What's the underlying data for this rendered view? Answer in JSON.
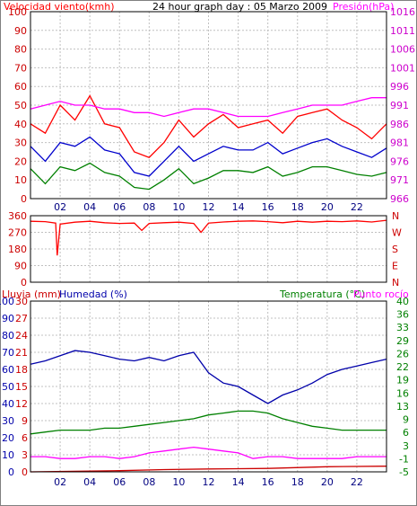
{
  "header": {
    "wind_label": "Velocidad viento(kmh)",
    "title": "24 hour graph day : 05 Marzo 2009",
    "pressure_label": "Presión(hPa)"
  },
  "lower_header": {
    "rain_label": "Lluvia (mm)",
    "humidity_label": "Humedad (%)",
    "temp_label": "Temperatura (°C)",
    "dew_label": "Punto rocío"
  },
  "colors": {
    "background": "#ffffff",
    "grid": "#c0c0c0",
    "frame": "#000000",
    "wind": "#ff0000",
    "wind_avg": "#0000cc",
    "wind_low": "#008000",
    "pressure": "#ff00ff",
    "direction": "#ff0000",
    "humidity": "#0000aa",
    "temperature": "#008000",
    "dew_point": "#ff00ff",
    "rain": "#cc0000",
    "left_axis_text": "#cc0000",
    "right_axis_text": "#cc00cc",
    "temp_axis_text": "#008000"
  },
  "chart_data": [
    {
      "type": "line",
      "title": "24 hour graph day : 05 Marzo 2009",
      "x_ticks": [
        "02",
        "04",
        "06",
        "08",
        "10",
        "12",
        "14",
        "16",
        "18",
        "20",
        "22"
      ],
      "x_tick_hours": [
        2,
        4,
        6,
        8,
        10,
        12,
        14,
        16,
        18,
        20,
        22
      ],
      "xlim": [
        0,
        24
      ],
      "y_left_label": "Velocidad viento(kmh)",
      "y_left_ticks": [
        0,
        10,
        20,
        30,
        40,
        50,
        60,
        70,
        80,
        90,
        100
      ],
      "ylim_left": [
        0,
        100
      ],
      "y_right_label": "Presión(hPa)",
      "y_right_ticks": [
        966,
        971,
        976,
        981,
        986,
        991,
        996,
        1001,
        1006,
        1011,
        1016
      ],
      "ylim_right": [
        966,
        1016
      ],
      "grid": true,
      "series": [
        {
          "axis": "left",
          "x": [
            0,
            1,
            2,
            3,
            4,
            5,
            6,
            7,
            8,
            9,
            10,
            11,
            12,
            13,
            14,
            15,
            16,
            17,
            18,
            19,
            20,
            21,
            22,
            23,
            24
          ],
          "values": [
            40,
            35,
            50,
            42,
            55,
            40,
            38,
            25,
            22,
            30,
            42,
            33,
            40,
            45,
            38,
            40,
            42,
            35,
            44,
            46,
            48,
            42,
            38,
            32,
            40
          ]
        },
        {
          "axis": "left",
          "x": [
            0,
            1,
            2,
            3,
            4,
            5,
            6,
            7,
            8,
            9,
            10,
            11,
            12,
            13,
            14,
            15,
            16,
            17,
            18,
            19,
            20,
            21,
            22,
            23,
            24
          ],
          "values": [
            28,
            20,
            30,
            28,
            33,
            26,
            24,
            14,
            12,
            20,
            28,
            20,
            24,
            28,
            26,
            26,
            30,
            24,
            27,
            30,
            32,
            28,
            25,
            22,
            27
          ]
        },
        {
          "axis": "left",
          "x": [
            0,
            1,
            2,
            3,
            4,
            5,
            6,
            7,
            8,
            9,
            10,
            11,
            12,
            13,
            14,
            15,
            16,
            17,
            18,
            19,
            20,
            21,
            22,
            23,
            24
          ],
          "values": [
            16,
            8,
            17,
            15,
            19,
            14,
            12,
            6,
            5,
            10,
            16,
            8,
            11,
            15,
            15,
            14,
            17,
            12,
            14,
            17,
            17,
            15,
            13,
            12,
            14
          ]
        },
        {
          "axis": "right",
          "x": [
            0,
            1,
            2,
            3,
            4,
            5,
            6,
            7,
            8,
            9,
            10,
            11,
            12,
            13,
            14,
            15,
            16,
            17,
            18,
            19,
            20,
            21,
            22,
            23,
            24
          ],
          "values": [
            990,
            991,
            992,
            991,
            991,
            990,
            990,
            989,
            989,
            988,
            989,
            990,
            990,
            989,
            988,
            988,
            988,
            989,
            990,
            991,
            991,
            991,
            992,
            993,
            993
          ]
        }
      ]
    },
    {
      "type": "line",
      "x_ticks": [
        "02",
        "04",
        "06",
        "08",
        "10",
        "12",
        "14",
        "16",
        "18",
        "20",
        "22"
      ],
      "xlim": [
        0,
        24
      ],
      "y_left_ticks": [
        0,
        90,
        180,
        270,
        360
      ],
      "ylim_left": [
        0,
        360
      ],
      "y_right_ticks": [
        "N",
        "E",
        "S",
        "W",
        "N"
      ],
      "grid": true,
      "series": [
        {
          "x": [
            0,
            1,
            1.7,
            1.8,
            2,
            3,
            4,
            5,
            6,
            7,
            7.5,
            8,
            9,
            10,
            11,
            11.5,
            12,
            13,
            14,
            15,
            16,
            17,
            18,
            19,
            20,
            21,
            22,
            23,
            24
          ],
          "values": [
            330,
            328,
            320,
            145,
            315,
            325,
            330,
            322,
            318,
            320,
            280,
            318,
            322,
            325,
            318,
            270,
            320,
            326,
            330,
            332,
            328,
            322,
            330,
            325,
            330,
            328,
            332,
            326,
            335
          ]
        }
      ]
    },
    {
      "type": "line",
      "x_ticks": [
        "02",
        "04",
        "06",
        "08",
        "10",
        "12",
        "14",
        "16",
        "18",
        "20",
        "22"
      ],
      "xlim": [
        0,
        24
      ],
      "y_axis_rain_ticks": [
        0,
        3,
        6,
        9,
        12,
        15,
        18,
        21,
        24,
        27,
        30
      ],
      "ylim_rain": [
        0,
        30
      ],
      "y_axis_humidity_ticks": [
        0,
        10,
        20,
        30,
        40,
        50,
        60,
        70,
        80,
        90,
        100
      ],
      "ylim_humidity": [
        0,
        100
      ],
      "y_axis_temp_ticks": [
        -5,
        -1,
        3,
        6,
        9,
        13,
        16,
        19,
        22,
        26,
        29,
        33,
        36,
        40
      ],
      "ylim_temp": [
        -5,
        40
      ],
      "grid": true,
      "series": [
        {
          "axis": "humidity",
          "x": [
            0,
            1,
            2,
            3,
            4,
            5,
            6,
            7,
            8,
            9,
            10,
            11,
            12,
            13,
            14,
            15,
            16,
            17,
            18,
            19,
            20,
            21,
            22,
            23,
            24
          ],
          "values": [
            63,
            65,
            68,
            71,
            70,
            68,
            66,
            65,
            67,
            65,
            68,
            70,
            58,
            52,
            50,
            45,
            40,
            45,
            48,
            52,
            57,
            60,
            62,
            64,
            66
          ]
        },
        {
          "axis": "temp",
          "x": [
            0,
            1,
            2,
            3,
            4,
            5,
            6,
            7,
            8,
            9,
            10,
            11,
            12,
            13,
            14,
            15,
            16,
            17,
            18,
            19,
            20,
            21,
            22,
            23,
            24
          ],
          "values": [
            5,
            5.5,
            6,
            6,
            6,
            6.5,
            6.5,
            7,
            7.5,
            8,
            8.5,
            9,
            10,
            10.5,
            11,
            11,
            10.5,
            9,
            8,
            7,
            6.5,
            6,
            6,
            6,
            6
          ]
        },
        {
          "axis": "temp",
          "x": [
            0,
            1,
            2,
            3,
            4,
            5,
            6,
            7,
            8,
            9,
            10,
            11,
            12,
            13,
            14,
            15,
            16,
            17,
            18,
            19,
            20,
            21,
            22,
            23,
            24
          ],
          "values": [
            -1,
            -1,
            -1.5,
            -1.5,
            -1,
            -1,
            -1.5,
            -1,
            0,
            0.5,
            1,
            1.5,
            1,
            0.5,
            0,
            -1.5,
            -1,
            -1,
            -1.5,
            -1.5,
            -1.5,
            -1.5,
            -1,
            -1,
            -1
          ]
        },
        {
          "axis": "rain",
          "x": [
            0,
            6,
            9,
            12,
            16,
            20,
            24
          ],
          "values": [
            0,
            0.2,
            0.4,
            0.5,
            0.6,
            0.9,
            1.0
          ]
        }
      ]
    }
  ]
}
